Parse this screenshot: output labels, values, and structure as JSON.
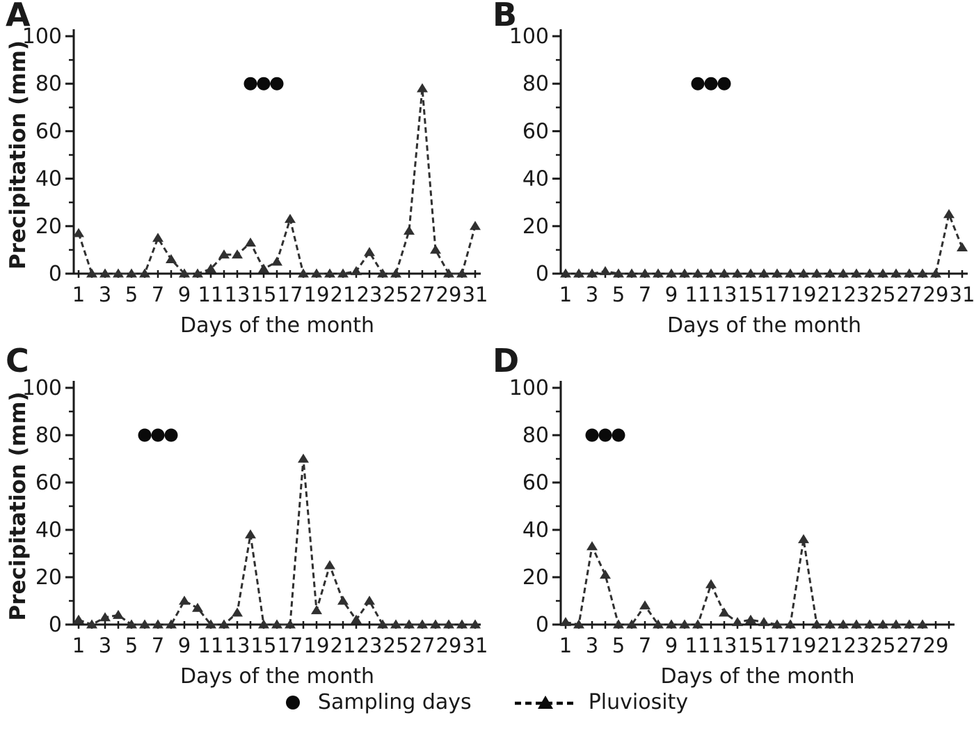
{
  "figure": {
    "background": "#ffffff",
    "ink": "#1a1a1a",
    "series_color": "#303030",
    "dot_color": "#0a0a0a"
  },
  "legend": {
    "sampling_label": "Sampling days",
    "pluviosity_label": "Pluviosity"
  },
  "chart_data": [
    {
      "panel": "A",
      "type": "line",
      "line_style": "dashed",
      "marker": "triangle",
      "xlabel": "Days of the month",
      "ylabel": "Precipitation (mm)",
      "xlim": [
        0.5,
        31.5
      ],
      "ylim": [
        0,
        100
      ],
      "y_ticks": [
        0,
        20,
        40,
        60,
        80,
        100
      ],
      "x_tick_labels": [
        "1",
        "3",
        "5",
        "7",
        "9",
        "11",
        "13",
        "15",
        "17",
        "19",
        "21",
        "23",
        "25",
        "27",
        "29",
        "31"
      ],
      "x_max_tick": 31,
      "days": [
        1,
        2,
        3,
        4,
        5,
        6,
        7,
        8,
        9,
        10,
        11,
        12,
        13,
        14,
        15,
        16,
        17,
        18,
        19,
        20,
        21,
        22,
        23,
        24,
        25,
        26,
        27,
        28,
        29,
        30,
        31
      ],
      "values": [
        17,
        0,
        0,
        0,
        0,
        0,
        15,
        6,
        0,
        0,
        2,
        8,
        8,
        13,
        2,
        5,
        23,
        0,
        0,
        0,
        0,
        1,
        9,
        0,
        0,
        18,
        78,
        10,
        0,
        0,
        20
      ],
      "sampling_days": [
        14,
        15,
        16
      ],
      "sampling_value": 80
    },
    {
      "panel": "B",
      "type": "line",
      "line_style": "dashed",
      "marker": "triangle",
      "xlabel": "Days of the month",
      "ylabel": "",
      "xlim": [
        0.5,
        31.5
      ],
      "ylim": [
        0,
        100
      ],
      "y_ticks": [
        0,
        20,
        40,
        60,
        80,
        100
      ],
      "x_tick_labels": [
        "1",
        "3",
        "5",
        "7",
        "9",
        "11",
        "13",
        "15",
        "17",
        "19",
        "21",
        "23",
        "25",
        "27",
        "29",
        "31"
      ],
      "x_max_tick": 31,
      "days": [
        1,
        2,
        3,
        4,
        5,
        6,
        7,
        8,
        9,
        10,
        11,
        12,
        13,
        14,
        15,
        16,
        17,
        18,
        19,
        20,
        21,
        22,
        23,
        24,
        25,
        26,
        27,
        28,
        29,
        30,
        31
      ],
      "values": [
        0,
        0,
        0,
        1,
        0,
        0,
        0,
        0,
        0,
        0,
        0,
        0,
        0,
        0,
        0,
        0,
        0,
        0,
        0,
        0,
        0,
        0,
        0,
        0,
        0,
        0,
        0,
        0,
        0,
        25,
        11
      ],
      "sampling_days": [
        11,
        12,
        13
      ],
      "sampling_value": 80
    },
    {
      "panel": "C",
      "type": "line",
      "line_style": "dashed",
      "marker": "triangle",
      "xlabel": "Days of the month",
      "ylabel": "Precipitation (mm)",
      "xlim": [
        0.5,
        31.5
      ],
      "ylim": [
        0,
        100
      ],
      "y_ticks": [
        0,
        20,
        40,
        60,
        80,
        100
      ],
      "x_tick_labels": [
        "1",
        "3",
        "5",
        "7",
        "9",
        "11",
        "13",
        "15",
        "17",
        "19",
        "21",
        "23",
        "25",
        "27",
        "29",
        "31"
      ],
      "x_max_tick": 31,
      "days": [
        1,
        2,
        3,
        4,
        5,
        6,
        7,
        8,
        9,
        10,
        11,
        12,
        13,
        14,
        15,
        16,
        17,
        18,
        19,
        20,
        21,
        22,
        23,
        24,
        25,
        26,
        27,
        28,
        29,
        30,
        31
      ],
      "values": [
        2,
        0,
        3,
        4,
        0,
        0,
        0,
        0,
        10,
        7,
        0,
        0,
        5,
        38,
        0,
        0,
        0,
        70,
        6,
        25,
        10,
        2,
        10,
        0,
        0,
        0,
        0,
        0,
        0,
        0,
        0
      ],
      "sampling_days": [
        6,
        7,
        8
      ],
      "sampling_value": 80
    },
    {
      "panel": "D",
      "type": "line",
      "line_style": "dashed",
      "marker": "triangle",
      "xlabel": "Days of the month",
      "ylabel": "",
      "xlim": [
        0.5,
        30.5
      ],
      "ylim": [
        0,
        100
      ],
      "y_ticks": [
        0,
        20,
        40,
        60,
        80,
        100
      ],
      "x_tick_labels": [
        "1",
        "3",
        "5",
        "7",
        "9",
        "11",
        "13",
        "15",
        "17",
        "19",
        "21",
        "23",
        "25",
        "27",
        "29"
      ],
      "x_max_tick": 30,
      "days": [
        1,
        2,
        3,
        4,
        5,
        6,
        7,
        8,
        9,
        10,
        11,
        12,
        13,
        14,
        15,
        16,
        17,
        18,
        19,
        20,
        21,
        22,
        23,
        24,
        25,
        26,
        27,
        28
      ],
      "values": [
        1,
        0,
        33,
        21,
        0,
        0,
        8,
        0,
        0,
        0,
        0,
        17,
        5,
        1,
        2,
        1,
        0,
        0,
        36,
        0,
        0,
        0,
        0,
        0,
        0,
        0,
        0,
        0
      ],
      "sampling_days": [
        3,
        4,
        5
      ],
      "sampling_value": 80
    }
  ]
}
